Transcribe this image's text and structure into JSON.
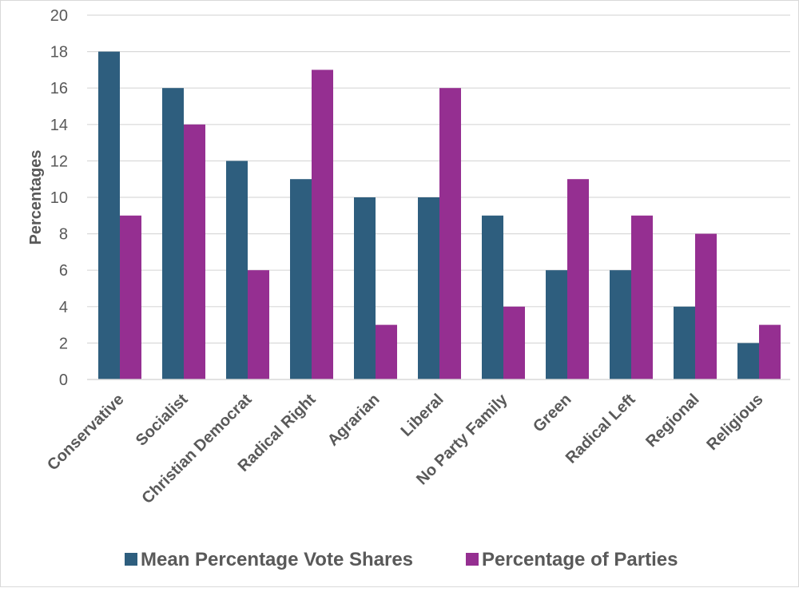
{
  "chart_data": {
    "type": "bar",
    "categories": [
      "Conservative",
      "Socialist",
      "Christian Democrat",
      "Radical Right",
      "Agrarian",
      "Liberal",
      "No Party Family",
      "Green",
      "Radical Left",
      "Regional",
      "Religious"
    ],
    "series": [
      {
        "name": "Mean Percentage Vote Shares",
        "color": "#2e5e7e",
        "values": [
          18,
          16,
          12,
          11,
          10,
          10,
          9,
          6,
          6,
          4,
          2
        ]
      },
      {
        "name": "Percentage of Parties",
        "color": "#952f91",
        "values": [
          9,
          14,
          6,
          17,
          3,
          16,
          4,
          11,
          9,
          8,
          3
        ]
      }
    ],
    "ylabel": "Percentages",
    "xlabel": "",
    "ylim": [
      0,
      20
    ],
    "yticks": [
      0,
      2,
      4,
      6,
      8,
      10,
      12,
      14,
      16,
      18,
      20
    ],
    "grid": true,
    "legend": "bottom-center"
  }
}
